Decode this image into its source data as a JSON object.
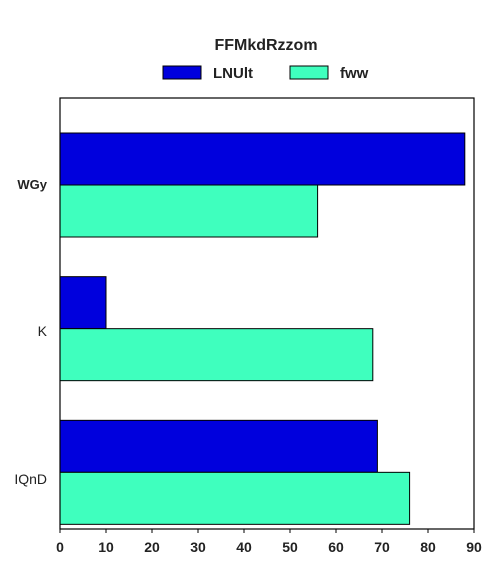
{
  "chart_data": {
    "type": "bar",
    "orientation": "horizontal",
    "title": "FFMkdRzzom",
    "categories": [
      "WGy",
      "K",
      "IQnD"
    ],
    "series": [
      {
        "name": "LNUlt",
        "values": [
          88,
          10,
          69
        ],
        "color": "#0000dd"
      },
      {
        "name": "fww",
        "values": [
          56,
          68,
          76
        ],
        "color": "#3fffbe"
      }
    ],
    "xlim": [
      0,
      90
    ],
    "xticks": [
      0,
      10,
      20,
      30,
      40,
      50,
      60,
      70,
      80,
      90
    ],
    "xlabel": "",
    "ylabel": "",
    "grid": false,
    "legend_position": "top"
  }
}
